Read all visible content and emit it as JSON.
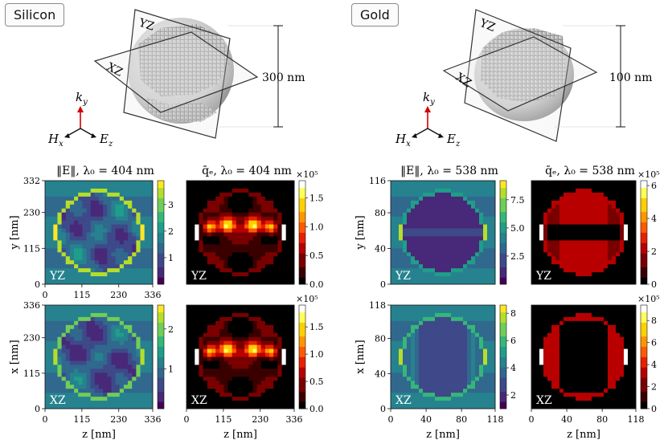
{
  "labels": {
    "silicon": "Silicon",
    "gold": "Gold"
  },
  "schematic": {
    "silicon": {
      "plane_yz": "YZ",
      "plane_xz": "XZ",
      "size": "300 nm"
    },
    "gold": {
      "plane_yz": "YZ",
      "plane_xz": "XZ",
      "size": "100 nm"
    },
    "axes": {
      "k": "k",
      "k_sub": "y",
      "h": "H",
      "h_sub": "x",
      "e": "E",
      "e_sub": "z"
    }
  },
  "colors": {
    "viridis": [
      "#440154",
      "#482878",
      "#3e4989",
      "#31688e",
      "#26828e",
      "#1f9e89",
      "#35b779",
      "#6ece58",
      "#b5de2b",
      "#fde725"
    ],
    "hot": [
      "#000000",
      "#3a0000",
      "#7a0000",
      "#b80000",
      "#e82000",
      "#ff5a00",
      "#ff9600",
      "#ffd000",
      "#ffff5a",
      "#ffffff"
    ],
    "arrow_red": "#d40000"
  },
  "panels": [
    {
      "id": "si-E-yz",
      "title": "‖E‖, λ₀ = 404 nm",
      "plane": "YZ",
      "cmap": "viridis",
      "xlim": [
        0,
        336
      ],
      "ylim": [
        0,
        332
      ],
      "xticks": [
        "0",
        "115",
        "230",
        "336"
      ],
      "yticks": [
        "0",
        "115",
        "230",
        "332"
      ],
      "ylabel": "y [nm]",
      "xlabel": "",
      "cbar": {
        "ticks": [
          "1",
          "2",
          "3"
        ],
        "tick_values": [
          1,
          2,
          3
        ],
        "range": [
          0,
          3.9
        ],
        "exponent": ""
      },
      "field": {
        "shape": "circle",
        "inside": 0.28,
        "outside": 0.45,
        "ring": 0.85,
        "hotspots": 0.95,
        "variant": "si"
      }
    },
    {
      "id": "si-q-yz",
      "title": "q̄ₑ, λ₀ = 404 nm",
      "plane": "YZ",
      "cmap": "hot",
      "xlim": [
        0,
        336
      ],
      "ylim": [
        0,
        332
      ],
      "xticks": [],
      "yticks": [],
      "ylabel": "",
      "xlabel": "",
      "cbar": {
        "ticks": [
          "0.0",
          "0.5",
          "1.0",
          "1.5"
        ],
        "tick_values": [
          0,
          0.5,
          1.0,
          1.5
        ],
        "range": [
          0,
          1.8
        ],
        "exponent": "×10⁵"
      },
      "field": {
        "shape": "circle",
        "inside": 0.3,
        "outside": 0.0,
        "ring": 0.2,
        "hotspots": 0.95,
        "variant": "si-q"
      }
    },
    {
      "id": "si-E-xz",
      "title": "",
      "plane": "XZ",
      "cmap": "viridis",
      "xlim": [
        0,
        336
      ],
      "ylim": [
        0,
        336
      ],
      "xticks": [
        "0",
        "115",
        "230",
        "336"
      ],
      "yticks": [
        "0",
        "115",
        "230",
        "336"
      ],
      "ylabel": "x [nm]",
      "xlabel": "z [nm]",
      "cbar": {
        "ticks": [
          "1",
          "2"
        ],
        "tick_values": [
          1,
          2
        ],
        "range": [
          0,
          2.6
        ],
        "exponent": ""
      },
      "field": {
        "shape": "circle",
        "inside": 0.25,
        "outside": 0.45,
        "ring": 0.75,
        "hotspots": 0.9,
        "variant": "si"
      }
    },
    {
      "id": "si-q-xz",
      "title": "",
      "plane": "XZ",
      "cmap": "hot",
      "xlim": [
        0,
        336
      ],
      "ylim": [
        0,
        336
      ],
      "xticks": [
        "0",
        "115",
        "230",
        "336"
      ],
      "yticks": [],
      "ylabel": "",
      "xlabel": "z [nm]",
      "cbar": {
        "ticks": [
          "0.0",
          "0.5",
          "1.0",
          "1.5"
        ],
        "tick_values": [
          0,
          0.5,
          1.0,
          1.5
        ],
        "range": [
          0,
          1.9
        ],
        "exponent": "×10⁵"
      },
      "field": {
        "shape": "circle",
        "inside": 0.3,
        "outside": 0.0,
        "ring": 0.2,
        "hotspots": 0.95,
        "variant": "si-q"
      }
    },
    {
      "id": "au-E-yz",
      "title": "‖E‖, λ₀ = 538 nm",
      "plane": "YZ",
      "cmap": "viridis",
      "xlim": [
        0,
        118
      ],
      "ylim": [
        0,
        116
      ],
      "xticks": [],
      "yticks": [
        "0",
        "40",
        "80",
        "116"
      ],
      "ylabel": "y [nm]",
      "xlabel": "",
      "cbar": {
        "ticks": [
          "2.5",
          "5.0",
          "7.5"
        ],
        "tick_values": [
          2.5,
          5.0,
          7.5
        ],
        "range": [
          0,
          9.2
        ],
        "exponent": ""
      },
      "field": {
        "shape": "circle",
        "inside": 0.12,
        "outside": 0.45,
        "ring": 0.6,
        "hotspots": 0.85,
        "variant": "au"
      }
    },
    {
      "id": "au-q-yz",
      "title": "q̄ₑ, λ₀ = 538 nm",
      "plane": "YZ",
      "cmap": "hot",
      "xlim": [
        0,
        118
      ],
      "ylim": [
        0,
        116
      ],
      "xticks": [],
      "yticks": [],
      "ylabel": "",
      "xlabel": "",
      "cbar": {
        "ticks": [
          "0",
          "2",
          "4",
          "6"
        ],
        "tick_values": [
          0,
          2,
          4,
          6
        ],
        "range": [
          0,
          6.3
        ],
        "exponent": "×10⁵"
      },
      "field": {
        "shape": "circle",
        "inside": 0.3,
        "outside": 0.0,
        "ring": 0.35,
        "hotspots": 1.0,
        "variant": "au-q"
      }
    },
    {
      "id": "au-E-xz",
      "title": "",
      "plane": "XZ",
      "cmap": "viridis",
      "xlim": [
        0,
        118
      ],
      "ylim": [
        0,
        118
      ],
      "xticks": [
        "0",
        "40",
        "80",
        "118"
      ],
      "yticks": [
        "0",
        "40",
        "80",
        "118"
      ],
      "ylabel": "x [nm]",
      "xlabel": "z [nm]",
      "cbar": {
        "ticks": [
          "2",
          "4",
          "6",
          "8"
        ],
        "tick_values": [
          2,
          4,
          6,
          8
        ],
        "range": [
          1,
          8.6
        ],
        "exponent": ""
      },
      "field": {
        "shape": "circle",
        "inside": 0.2,
        "outside": 0.45,
        "ring": 0.7,
        "hotspots": 0.9,
        "variant": "au-xz"
      }
    },
    {
      "id": "au-q-xz",
      "title": "",
      "plane": "XZ",
      "cmap": "hot",
      "xlim": [
        0,
        118
      ],
      "ylim": [
        0,
        118
      ],
      "xticks": [
        "0",
        "40",
        "80",
        "118"
      ],
      "yticks": [],
      "ylabel": "",
      "xlabel": "z [nm]",
      "cbar": {
        "ticks": [
          "0",
          "2",
          "4",
          "6",
          "8"
        ],
        "tick_values": [
          0,
          2,
          4,
          6,
          8
        ],
        "range": [
          0,
          9.4
        ],
        "exponent": "×10⁵"
      },
      "field": {
        "shape": "circle",
        "inside": 0.0,
        "outside": 0.0,
        "ring": 0.35,
        "hotspots": 1.0,
        "variant": "au-q-xz"
      }
    }
  ]
}
